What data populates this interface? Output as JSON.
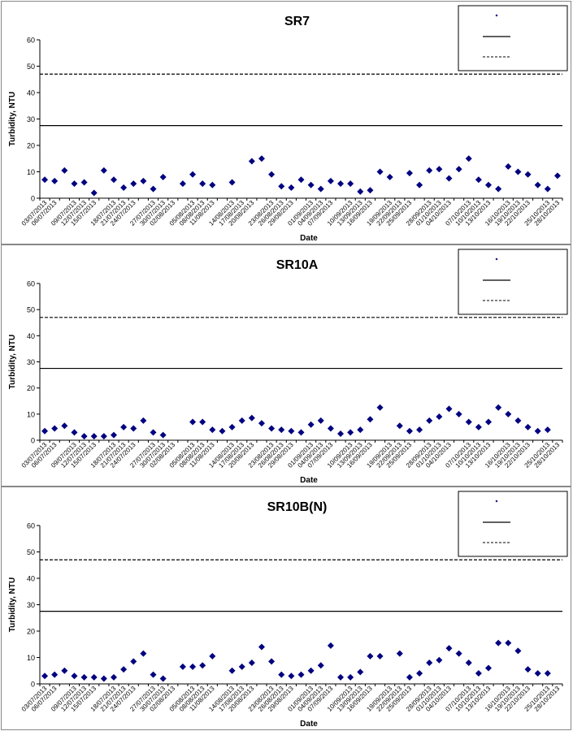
{
  "chart_data": [
    {
      "type": "scatter",
      "title": "SR7",
      "xlabel": "Date",
      "ylabel": "Turbidity, NTU",
      "ylim": [
        0,
        60
      ],
      "yticks": [
        0,
        10,
        20,
        30,
        40,
        50,
        60
      ],
      "grid": false,
      "legend_position": "top-right",
      "x_tick_labels": [
        "03/07/2013",
        "06/07/2013",
        "09/07/2013",
        "12/07/2013",
        "15/07/2013",
        "18/07/2013",
        "21/07/2013",
        "24/07/2013",
        "27/07/2013",
        "30/07/2013",
        "02/08/2013",
        "05/08/2013",
        "08/08/2013",
        "11/08/2013",
        "14/08/2013",
        "17/08/2013",
        "20/08/2013",
        "23/08/2013",
        "26/08/2013",
        "29/08/2013",
        "01/09/2013",
        "04/09/2013",
        "07/09/2013",
        "10/09/2013",
        "13/09/2013",
        "16/09/2013",
        "19/09/2013",
        "22/09/2013",
        "25/09/2013",
        "28/09/2013",
        "01/10/2013",
        "04/10/2013",
        "07/10/2013",
        "10/10/2013",
        "13/10/2013",
        "16/10/2013",
        "19/10/2013",
        "22/10/2013",
        "25/10/2013",
        "28/10/2013"
      ],
      "series": [
        {
          "style": "markers",
          "color": "#000080",
          "points": [
            [
              0,
              7
            ],
            [
              1,
              6.5
            ],
            [
              2,
              10.5
            ],
            [
              3,
              5.5
            ],
            [
              4,
              6
            ],
            [
              5,
              2
            ],
            [
              6,
              10.5
            ],
            [
              7,
              7
            ],
            [
              8,
              4
            ],
            [
              9,
              5.5
            ],
            [
              10,
              6.5
            ],
            [
              11,
              3.5
            ],
            [
              12,
              8
            ],
            [
              14,
              5.5
            ],
            [
              15,
              9
            ],
            [
              16,
              5.5
            ],
            [
              17,
              5
            ],
            [
              19,
              6
            ],
            [
              21,
              14
            ],
            [
              22,
              15
            ],
            [
              23,
              9
            ],
            [
              24,
              4.5
            ],
            [
              25,
              4
            ],
            [
              26,
              7
            ],
            [
              27,
              5
            ],
            [
              28,
              3.5
            ],
            [
              29,
              6.5
            ],
            [
              30,
              5.5
            ],
            [
              31,
              5.5
            ],
            [
              32,
              2.5
            ],
            [
              33,
              3
            ],
            [
              34,
              10
            ],
            [
              35,
              8
            ],
            [
              37,
              9.5
            ],
            [
              38,
              5
            ],
            [
              39,
              10.5
            ],
            [
              40,
              11
            ],
            [
              41,
              7.5
            ],
            [
              42,
              11
            ],
            [
              43,
              15
            ],
            [
              44,
              7
            ],
            [
              45,
              5
            ],
            [
              46,
              3.5
            ],
            [
              47,
              12
            ],
            [
              48,
              10
            ],
            [
              49,
              9
            ],
            [
              50,
              5
            ],
            [
              51,
              3.5
            ],
            [
              52,
              8.5
            ]
          ]
        },
        {
          "style": "solid",
          "color": "#000000",
          "y": 27.5
        },
        {
          "style": "dashed",
          "color": "#000000",
          "y": 47
        }
      ]
    },
    {
      "type": "scatter",
      "title": "SR10A",
      "xlabel": "Date",
      "ylabel": "Turbidity, NTU",
      "ylim": [
        0,
        60
      ],
      "yticks": [
        0,
        10,
        20,
        30,
        40,
        50,
        60
      ],
      "grid": false,
      "legend_position": "top-right",
      "x_tick_labels": [
        "03/07/2013",
        "06/07/2013",
        "09/07/2013",
        "12/07/2013",
        "15/07/2013",
        "18/07/2013",
        "21/07/2013",
        "24/07/2013",
        "27/07/2013",
        "30/07/2013",
        "02/08/2013",
        "05/08/2013",
        "08/08/2013",
        "11/08/2013",
        "14/08/2013",
        "17/08/2013",
        "20/08/2013",
        "23/08/2013",
        "26/08/2013",
        "29/08/2013",
        "01/09/2013",
        "04/09/2013",
        "07/09/2013",
        "10/09/2013",
        "13/09/2013",
        "16/09/2013",
        "19/09/2013",
        "22/09/2013",
        "25/09/2013",
        "28/09/2013",
        "01/10/2013",
        "04/10/2013",
        "07/10/2013",
        "10/10/2013",
        "13/10/2013",
        "16/10/2013",
        "19/10/2013",
        "22/10/2013",
        "25/10/2013",
        "28/10/2013"
      ],
      "series": [
        {
          "style": "markers",
          "color": "#000080",
          "points": [
            [
              0,
              3.5
            ],
            [
              1,
              4.5
            ],
            [
              2,
              5.5
            ],
            [
              3,
              3
            ],
            [
              4,
              1.5
            ],
            [
              5,
              1.5
            ],
            [
              6,
              1.5
            ],
            [
              7,
              2
            ],
            [
              8,
              5
            ],
            [
              9,
              4.5
            ],
            [
              10,
              7.5
            ],
            [
              11,
              3
            ],
            [
              12,
              2
            ],
            [
              15,
              7
            ],
            [
              16,
              7
            ],
            [
              17,
              4
            ],
            [
              18,
              3.5
            ],
            [
              19,
              5
            ],
            [
              20,
              7.5
            ],
            [
              21,
              8.5
            ],
            [
              22,
              6.5
            ],
            [
              23,
              4.5
            ],
            [
              24,
              4
            ],
            [
              25,
              3.5
            ],
            [
              26,
              3
            ],
            [
              27,
              6
            ],
            [
              28,
              7.5
            ],
            [
              29,
              4.5
            ],
            [
              30,
              2.5
            ],
            [
              31,
              3
            ],
            [
              32,
              4
            ],
            [
              33,
              8
            ],
            [
              34,
              12.5
            ],
            [
              36,
              5.5
            ],
            [
              37,
              3.5
            ],
            [
              38,
              4
            ],
            [
              39,
              7.5
            ],
            [
              40,
              9
            ],
            [
              41,
              12
            ],
            [
              42,
              10
            ],
            [
              43,
              7
            ],
            [
              44,
              5
            ],
            [
              45,
              7
            ],
            [
              46,
              12.5
            ],
            [
              47,
              10
            ],
            [
              48,
              7.5
            ],
            [
              49,
              5
            ],
            [
              50,
              3.5
            ],
            [
              51,
              4
            ]
          ]
        },
        {
          "style": "solid",
          "color": "#000000",
          "y": 27.5
        },
        {
          "style": "dashed",
          "color": "#000000",
          "y": 47
        }
      ]
    },
    {
      "type": "scatter",
      "title": "SR10B(N)",
      "xlabel": "Date",
      "ylabel": "Turbidity, NTU",
      "ylim": [
        0,
        60
      ],
      "yticks": [
        0,
        10,
        20,
        30,
        40,
        50,
        60
      ],
      "grid": false,
      "legend_position": "top-right",
      "x_tick_labels": [
        "03/07/2013",
        "06/07/2013",
        "09/07/2013",
        "12/07/2013",
        "15/07/2013",
        "18/07/2013",
        "21/07/2013",
        "24/07/2013",
        "27/07/2013",
        "30/07/2013",
        "02/08/2013",
        "05/08/2013",
        "08/08/2013",
        "11/08/2013",
        "14/08/2013",
        "17/08/2013",
        "20/08/2013",
        "23/08/2013",
        "26/08/2013",
        "29/08/2013",
        "01/09/2013",
        "04/09/2013",
        "07/09/2013",
        "10/09/2013",
        "13/09/2013",
        "16/09/2013",
        "19/09/2013",
        "22/09/2013",
        "25/09/2013",
        "28/09/2013",
        "01/10/2013",
        "04/10/2013",
        "07/10/2013",
        "10/10/2013",
        "13/10/2013",
        "16/10/2013",
        "19/10/2013",
        "22/10/2013",
        "25/10/2013",
        "28/10/2013"
      ],
      "series": [
        {
          "style": "markers",
          "color": "#000080",
          "points": [
            [
              0,
              3
            ],
            [
              1,
              3.5
            ],
            [
              2,
              5
            ],
            [
              3,
              3
            ],
            [
              4,
              2.5
            ],
            [
              5,
              2.5
            ],
            [
              6,
              2
            ],
            [
              7,
              2.5
            ],
            [
              8,
              5.5
            ],
            [
              9,
              8.5
            ],
            [
              10,
              11.5
            ],
            [
              11,
              3.5
            ],
            [
              12,
              2
            ],
            [
              14,
              6.5
            ],
            [
              15,
              6.5
            ],
            [
              16,
              7
            ],
            [
              17,
              10.5
            ],
            [
              19,
              5
            ],
            [
              20,
              6.5
            ],
            [
              21,
              8
            ],
            [
              22,
              14
            ],
            [
              23,
              8.5
            ],
            [
              24,
              3.5
            ],
            [
              25,
              3
            ],
            [
              26,
              3.5
            ],
            [
              27,
              5
            ],
            [
              28,
              7
            ],
            [
              29,
              14.5
            ],
            [
              30,
              2.5
            ],
            [
              31,
              2.5
            ],
            [
              32,
              4.5
            ],
            [
              33,
              10.5
            ],
            [
              34,
              10.5
            ],
            [
              36,
              11.5
            ],
            [
              37,
              2.5
            ],
            [
              38,
              4
            ],
            [
              39,
              8
            ],
            [
              40,
              9
            ],
            [
              41,
              13.5
            ],
            [
              42,
              11.5
            ],
            [
              43,
              8
            ],
            [
              44,
              4
            ],
            [
              45,
              6
            ],
            [
              46,
              15.5
            ],
            [
              47,
              15.5
            ],
            [
              48,
              12.5
            ],
            [
              49,
              5.5
            ],
            [
              50,
              4
            ],
            [
              51,
              4
            ]
          ]
        },
        {
          "style": "solid",
          "color": "#000000",
          "y": 27.5
        },
        {
          "style": "dashed",
          "color": "#000000",
          "y": 47
        }
      ]
    }
  ]
}
